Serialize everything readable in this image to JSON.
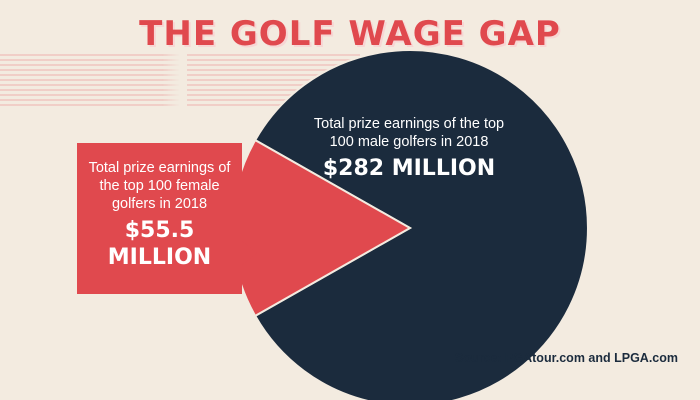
{
  "chart_data": {
    "type": "pie",
    "title": "THE GOLF WAGE GAP",
    "slices": [
      {
        "label": "Total prize earnings of the top 100 male golfers in 2018",
        "value": 282,
        "display": "$282 MILLION",
        "color": "#1b2b3d"
      },
      {
        "label": "Total prize earnings of the top 100 female golfers in 2018",
        "value": 55.5,
        "display": "$55.5 MILLION",
        "color": "#e0494e"
      }
    ],
    "source": "Source: PGAtour.com and LPGA.com"
  }
}
